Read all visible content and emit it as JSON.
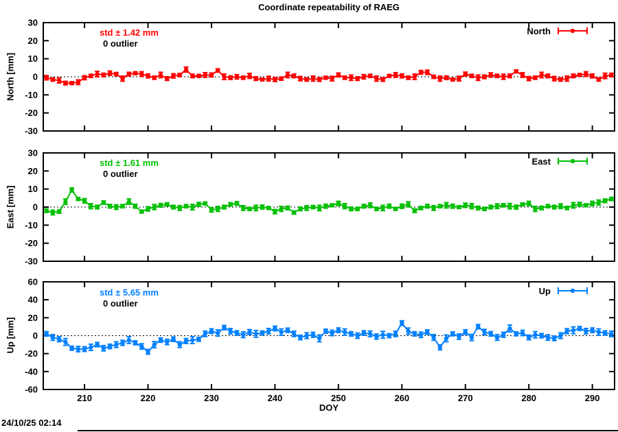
{
  "title": "Coordinate repeatability of RAEG",
  "xlabel": "DOY",
  "timestamp": "24/10/25 02:14",
  "doy": [
    204,
    205,
    206,
    207,
    208,
    209,
    210,
    211,
    212,
    213,
    214,
    215,
    216,
    217,
    218,
    219,
    220,
    221,
    222,
    223,
    224,
    225,
    226,
    227,
    228,
    229,
    230,
    231,
    232,
    233,
    234,
    235,
    236,
    237,
    238,
    239,
    240,
    241,
    242,
    243,
    244,
    245,
    246,
    247,
    248,
    249,
    250,
    251,
    252,
    253,
    254,
    255,
    256,
    257,
    258,
    259,
    260,
    261,
    262,
    263,
    264,
    265,
    266,
    267,
    268,
    269,
    270,
    271,
    272,
    273,
    274,
    275,
    276,
    277,
    278,
    279,
    280,
    281,
    282,
    283,
    284,
    285,
    286,
    287,
    288,
    289,
    290,
    291,
    292,
    293
  ],
  "chart_data": [
    {
      "type": "line",
      "name": "North",
      "legend_label": "North",
      "color": "#ff0000",
      "std_label": "std ± 1.42 mm",
      "outliers_label": "0 outlier",
      "ylabel": "North [mm]",
      "ylim": [
        -30,
        30
      ],
      "yticks": [
        30,
        20,
        10,
        0,
        -10,
        -20,
        -30
      ],
      "xlim": [
        203.5,
        293.5
      ],
      "xticks": [
        210,
        220,
        230,
        240,
        250,
        260,
        270,
        280,
        290
      ],
      "values": [
        -0.5,
        -1.5,
        -2,
        -3.5,
        -3.5,
        -3,
        -0.5,
        0.5,
        1.5,
        1,
        2,
        1.5,
        -1,
        1.5,
        2,
        1.5,
        0.5,
        -0.5,
        1,
        -1,
        0.5,
        1,
        4,
        0.5,
        0.5,
        1,
        1,
        3.5,
        0,
        -0.5,
        0,
        -0.5,
        0.5,
        -1,
        -1.5,
        -1,
        -1.5,
        -1,
        1,
        0.5,
        -1,
        -1.5,
        -1,
        -1.5,
        -0.5,
        -1,
        1,
        -0.5,
        -0.5,
        -1,
        0,
        0.5,
        -1,
        -1.5,
        0.5,
        1,
        0.5,
        -0.5,
        0,
        2.5,
        2.5,
        0,
        -1,
        -0.5,
        -1.5,
        -1,
        1.5,
        0.5,
        -0.5,
        0,
        1,
        0.5,
        0,
        0.5,
        3,
        1,
        -1,
        -0.5,
        1,
        0.5,
        -1,
        -1.5,
        -1,
        0.5,
        1,
        1.5,
        0.5,
        -1.5,
        0.5,
        1
      ],
      "errors": [
        1.2,
        0.9,
        1.4,
        1.0,
        0.8,
        1.3,
        1.1,
        0.9,
        1.5,
        1.0,
        1.2,
        0.9,
        1.4,
        1.0,
        0.8,
        1.3,
        1.1,
        0.9,
        1.5,
        1.0,
        1.2,
        0.9,
        1.4,
        1.0,
        0.8,
        1.3,
        1.1,
        0.9,
        1.5,
        1.0,
        1.2,
        0.9,
        1.4,
        1.0,
        0.8,
        1.3,
        1.1,
        0.9,
        1.5,
        1.0,
        1.2,
        0.9,
        1.4,
        1.0,
        0.8,
        1.3,
        1.1,
        0.9,
        1.5,
        1.0,
        1.2,
        0.9,
        1.4,
        1.0,
        0.8,
        1.3,
        1.1,
        0.9,
        1.5,
        1.0,
        1.2,
        0.9,
        1.4,
        1.0,
        0.8,
        1.3,
        1.1,
        0.9,
        1.5,
        1.0,
        1.2,
        0.9,
        1.4,
        1.0,
        0.8,
        1.3,
        1.1,
        0.9,
        1.5,
        1.0,
        1.2,
        0.9,
        1.4,
        1.0,
        0.8,
        1.3,
        1.1,
        0.9,
        1.5,
        1.0
      ]
    },
    {
      "type": "line",
      "name": "East",
      "legend_label": "East",
      "color": "#00c000",
      "std_label": "std ± 1.61 mm",
      "outliers_label": "0 outlier",
      "ylabel": "East [mm]",
      "ylim": [
        -30,
        30
      ],
      "yticks": [
        30,
        20,
        10,
        0,
        -10,
        -20,
        -30
      ],
      "xlim": [
        203.5,
        293.5
      ],
      "xticks": [
        210,
        220,
        230,
        240,
        250,
        260,
        270,
        280,
        290
      ],
      "values": [
        -2,
        -3,
        -2.5,
        3,
        9.5,
        4.5,
        3.5,
        0.5,
        0,
        2.5,
        0.5,
        0,
        0.5,
        3,
        0.5,
        -2.5,
        -1,
        0,
        1,
        1.5,
        0,
        -0.5,
        0.5,
        0,
        1.5,
        2,
        -1.5,
        -1,
        0,
        1.5,
        2,
        -0.5,
        -1,
        -0.5,
        0,
        -0.5,
        -2.5,
        -1,
        -0.5,
        -3,
        -1,
        -0.5,
        0,
        -0.5,
        0.5,
        1,
        2,
        0.5,
        -1,
        -1,
        0.5,
        1,
        -1,
        -0.5,
        0.5,
        -1,
        0.5,
        1.5,
        -2,
        -0.5,
        0.5,
        -0.5,
        0.5,
        1,
        0.5,
        0,
        1,
        0.5,
        -0.5,
        -1,
        0,
        0.5,
        1,
        0.5,
        0,
        1.5,
        2,
        -1,
        -0.5,
        0.5,
        0,
        0.5,
        -0.5,
        1,
        1.5,
        1,
        2,
        2.5,
        3.5,
        4.5
      ],
      "errors": [
        1.0,
        1.3,
        0.9,
        1.5,
        1.1,
        0.8,
        1.2,
        1.4,
        1.0,
        0.9,
        1.0,
        1.3,
        0.9,
        1.5,
        1.1,
        0.8,
        1.2,
        1.4,
        1.0,
        0.9,
        1.0,
        1.3,
        0.9,
        1.5,
        1.1,
        0.8,
        1.2,
        1.4,
        1.0,
        0.9,
        1.0,
        1.3,
        0.9,
        1.5,
        1.1,
        0.8,
        1.2,
        1.4,
        1.0,
        0.9,
        1.0,
        1.3,
        0.9,
        1.5,
        1.1,
        0.8,
        1.2,
        1.4,
        1.0,
        0.9,
        1.0,
        1.3,
        0.9,
        1.5,
        1.1,
        0.8,
        1.2,
        1.4,
        1.0,
        0.9,
        1.0,
        1.3,
        0.9,
        1.5,
        1.1,
        0.8,
        1.2,
        1.4,
        1.0,
        0.9,
        1.0,
        1.3,
        0.9,
        1.5,
        1.1,
        0.8,
        1.2,
        1.4,
        1.0,
        0.9,
        1.0,
        1.3,
        0.9,
        1.5,
        1.1,
        0.8,
        1.2,
        1.4,
        1.0,
        0.9
      ]
    },
    {
      "type": "line",
      "name": "Up",
      "legend_label": "Up",
      "color": "#0080ff",
      "std_label": "std ± 5.65 mm",
      "outliers_label": "0 outlier",
      "ylabel": "Up [mm]",
      "ylim": [
        -60,
        60
      ],
      "yticks": [
        60,
        40,
        20,
        0,
        -20,
        -40,
        -60
      ],
      "xlim": [
        203.5,
        293.5
      ],
      "xticks": [
        210,
        220,
        230,
        240,
        250,
        260,
        270,
        280,
        290
      ],
      "values": [
        2,
        -2,
        -4,
        -7,
        -14,
        -15,
        -15,
        -13,
        -10,
        -14,
        -12,
        -10,
        -8,
        -5,
        -8,
        -12,
        -18,
        -10,
        -5,
        -7,
        -4,
        -10,
        -6,
        -5,
        -4,
        2,
        5,
        3,
        9,
        5,
        3,
        1,
        4,
        2,
        3,
        5,
        8,
        4,
        6,
        2,
        -2,
        0,
        1,
        -3,
        5,
        3,
        6,
        4,
        2,
        0,
        3,
        2,
        -1,
        1,
        0,
        2,
        14,
        5,
        2,
        1,
        4,
        -2,
        -13,
        -3,
        2,
        -1,
        4,
        -2,
        10,
        4,
        2,
        -2,
        1,
        8,
        2,
        3,
        -2,
        1,
        0,
        -2,
        -3,
        0,
        5,
        6,
        8,
        5,
        6,
        4,
        3,
        2
      ],
      "errors": [
        2.5,
        3.2,
        2.8,
        3.8,
        2.2,
        3.0,
        2.6,
        3.5,
        2.4,
        3.0,
        2.5,
        3.2,
        2.8,
        3.8,
        2.2,
        3.0,
        2.6,
        3.5,
        2.4,
        3.0,
        2.5,
        3.2,
        2.8,
        3.8,
        2.2,
        3.0,
        2.6,
        3.5,
        2.4,
        3.0,
        2.5,
        3.2,
        2.8,
        3.8,
        2.2,
        3.0,
        2.6,
        3.5,
        2.4,
        3.0,
        2.5,
        3.2,
        2.8,
        3.8,
        2.2,
        3.0,
        2.6,
        3.5,
        2.4,
        3.0,
        2.5,
        3.2,
        2.8,
        3.8,
        2.2,
        3.0,
        2.6,
        3.5,
        2.4,
        3.0,
        2.5,
        3.2,
        2.8,
        3.8,
        2.2,
        3.0,
        2.6,
        3.5,
        2.4,
        3.0,
        2.5,
        3.2,
        2.8,
        3.8,
        2.2,
        3.0,
        2.6,
        3.5,
        2.4,
        3.0,
        2.5,
        3.2,
        2.8,
        3.8,
        2.2,
        3.0,
        2.6,
        3.5,
        2.4,
        3.0
      ]
    }
  ]
}
